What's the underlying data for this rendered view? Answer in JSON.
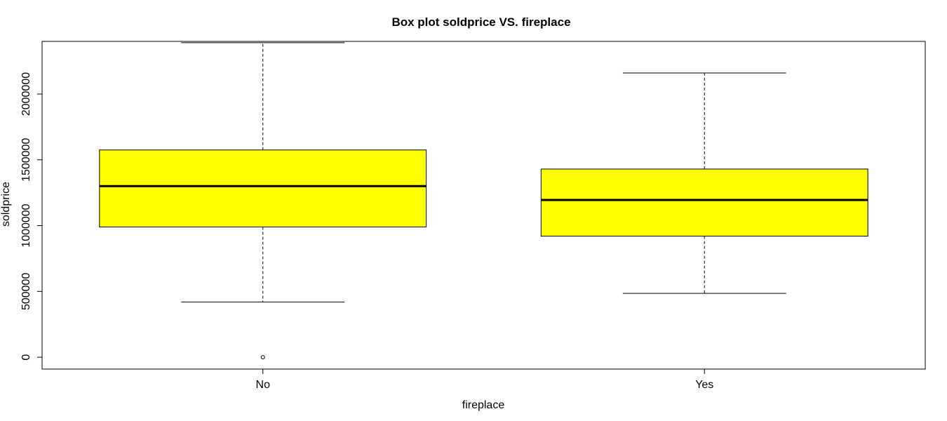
{
  "chart_data": {
    "type": "box",
    "title": "Box plot soldprice VS. fireplace",
    "xlabel": "fireplace",
    "ylabel": "soldprice",
    "ylim": [
      -90000,
      2400000
    ],
    "yticks": [
      0,
      500000,
      1000000,
      1500000,
      2000000
    ],
    "ytick_labels": [
      "0",
      "500000",
      "1000000",
      "1500000",
      "2000000"
    ],
    "grid": false,
    "legend": "none",
    "box_color": "#ffff00",
    "categories": [
      "No",
      "Yes"
    ],
    "boxes": [
      {
        "category": "No",
        "whisker_low": 420000,
        "q1": 990000,
        "median": 1300000,
        "q3": 1575000,
        "whisker_high": 2390000,
        "outliers": [
          0
        ]
      },
      {
        "category": "Yes",
        "whisker_low": 485000,
        "q1": 920000,
        "median": 1195000,
        "q3": 1430000,
        "whisker_high": 2160000,
        "outliers": []
      }
    ]
  }
}
